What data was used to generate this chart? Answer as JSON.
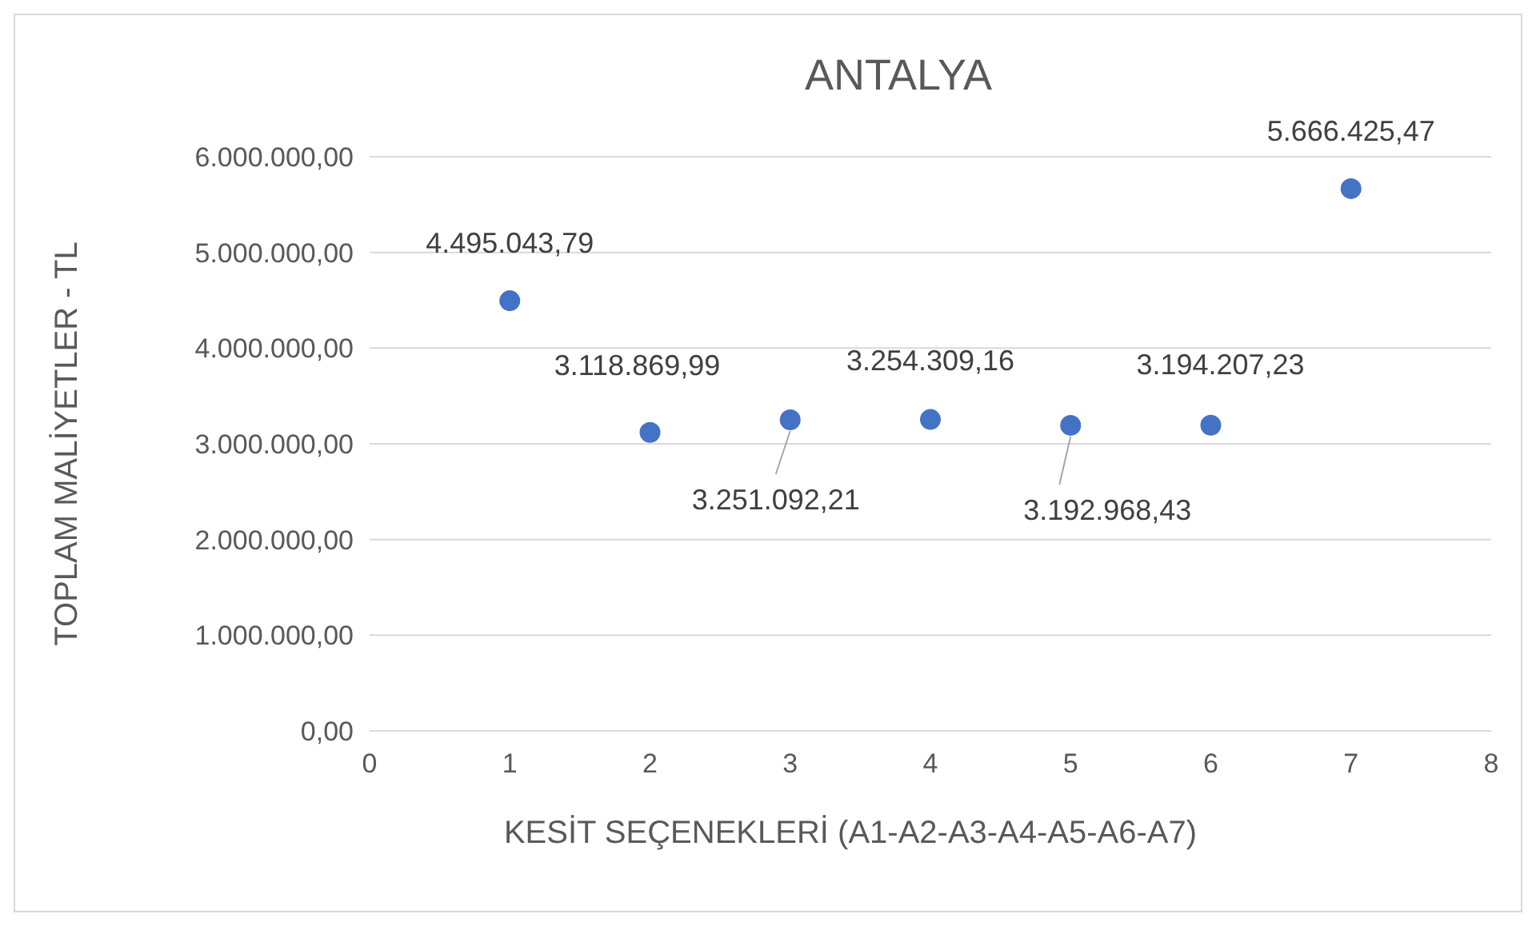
{
  "chart_data": {
    "type": "scatter",
    "title": "ANTALYA",
    "xlabel": "KESİT SEÇENEKLERİ (A1-A2-A3-A4-A5-A6-A7)",
    "ylabel": "TOPLAM MALİYETLER - TL",
    "x": [
      1,
      2,
      3,
      4,
      5,
      6,
      7
    ],
    "values": [
      4495043.79,
      3118869.99,
      3251092.21,
      3254309.16,
      3192968.43,
      3194207.23,
      5666425.47
    ],
    "value_labels": [
      "4.495.043,79",
      "3.118.869,99",
      "3.251.092,21",
      "3.254.309,16",
      "3.192.968,43",
      "3.194.207,23",
      "5.666.425,47"
    ],
    "color": "#4472c4",
    "marker": "circle",
    "grid": "y",
    "xlim": [
      0,
      8
    ],
    "xticks": [
      0,
      1,
      2,
      3,
      4,
      5,
      6,
      7,
      8
    ],
    "ylim": [
      0,
      6000000
    ],
    "yticks": [
      {
        "value": 0,
        "label": "0,00"
      },
      {
        "value": 1000000,
        "label": "1.000.000,00"
      },
      {
        "value": 2000000,
        "label": "2.000.000,00"
      },
      {
        "value": 3000000,
        "label": "3.000.000,00"
      },
      {
        "value": 4000000,
        "label": "4.000.000,00"
      },
      {
        "value": 5000000,
        "label": "5.000.000,00"
      },
      {
        "value": 6000000,
        "label": "6.000.000,00"
      }
    ]
  }
}
